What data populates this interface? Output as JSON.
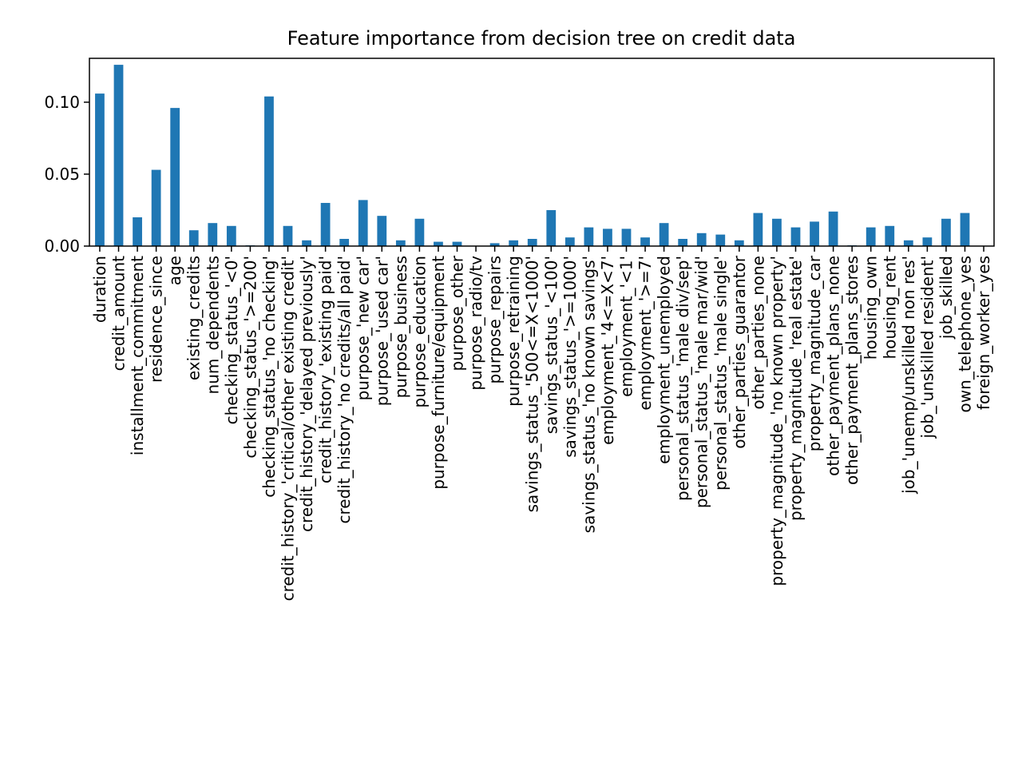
{
  "chart_data": {
    "type": "bar",
    "title": "Feature importance from decision tree on credit data",
    "xlabel": "",
    "ylabel": "",
    "ylim": [
      0,
      0.1305
    ],
    "yticks": [
      0.0,
      0.05,
      0.1
    ],
    "ytick_labels": [
      "0.00",
      "0.05",
      "0.10"
    ],
    "grid": false,
    "bar_color": "#1f77b4",
    "categories": [
      "duration",
      "credit_amount",
      "installment_commitment",
      "residence_since",
      "age",
      "existing_credits",
      "num_dependents",
      "checking_status_'<0'",
      "checking_status_'>=200'",
      "checking_status_'no checking'",
      "credit_history_'critical/other existing credit'",
      "credit_history_'delayed previously'",
      "credit_history_'existing paid'",
      "credit_history_'no credits/all paid'",
      "purpose_'new car'",
      "purpose_'used car'",
      "purpose_business",
      "purpose_education",
      "purpose_furniture/equipment",
      "purpose_other",
      "purpose_radio/tv",
      "purpose_repairs",
      "purpose_retraining",
      "savings_status_'500<=X<1000'",
      "savings_status_'<100'",
      "savings_status_'>=1000'",
      "savings_status_'no known savings'",
      "employment_'4<=X<7'",
      "employment_'<1'",
      "employment_'>=7'",
      "employment_unemployed",
      "personal_status_'male div/sep'",
      "personal_status_'male mar/wid'",
      "personal_status_'male single'",
      "other_parties_guarantor",
      "other_parties_none",
      "property_magnitude_'no known property'",
      "property_magnitude_'real estate'",
      "property_magnitude_car",
      "other_payment_plans_none",
      "other_payment_plans_stores",
      "housing_own",
      "housing_rent",
      "job_'unemp/unskilled non res'",
      "job_'unskilled resident'",
      "job_skilled",
      "own_telephone_yes",
      "foreign_worker_yes"
    ],
    "values": [
      0.106,
      0.126,
      0.02,
      0.053,
      0.096,
      0.011,
      0.016,
      0.014,
      0.0005,
      0.104,
      0.014,
      0.004,
      0.03,
      0.005,
      0.032,
      0.021,
      0.004,
      0.019,
      0.003,
      0.003,
      0.0,
      0.002,
      0.004,
      0.005,
      0.025,
      0.006,
      0.013,
      0.012,
      0.012,
      0.006,
      0.016,
      0.005,
      0.009,
      0.008,
      0.004,
      0.023,
      0.019,
      0.013,
      0.017,
      0.024,
      0.0005,
      0.013,
      0.014,
      0.004,
      0.006,
      0.019,
      0.023,
      0.0
    ]
  }
}
